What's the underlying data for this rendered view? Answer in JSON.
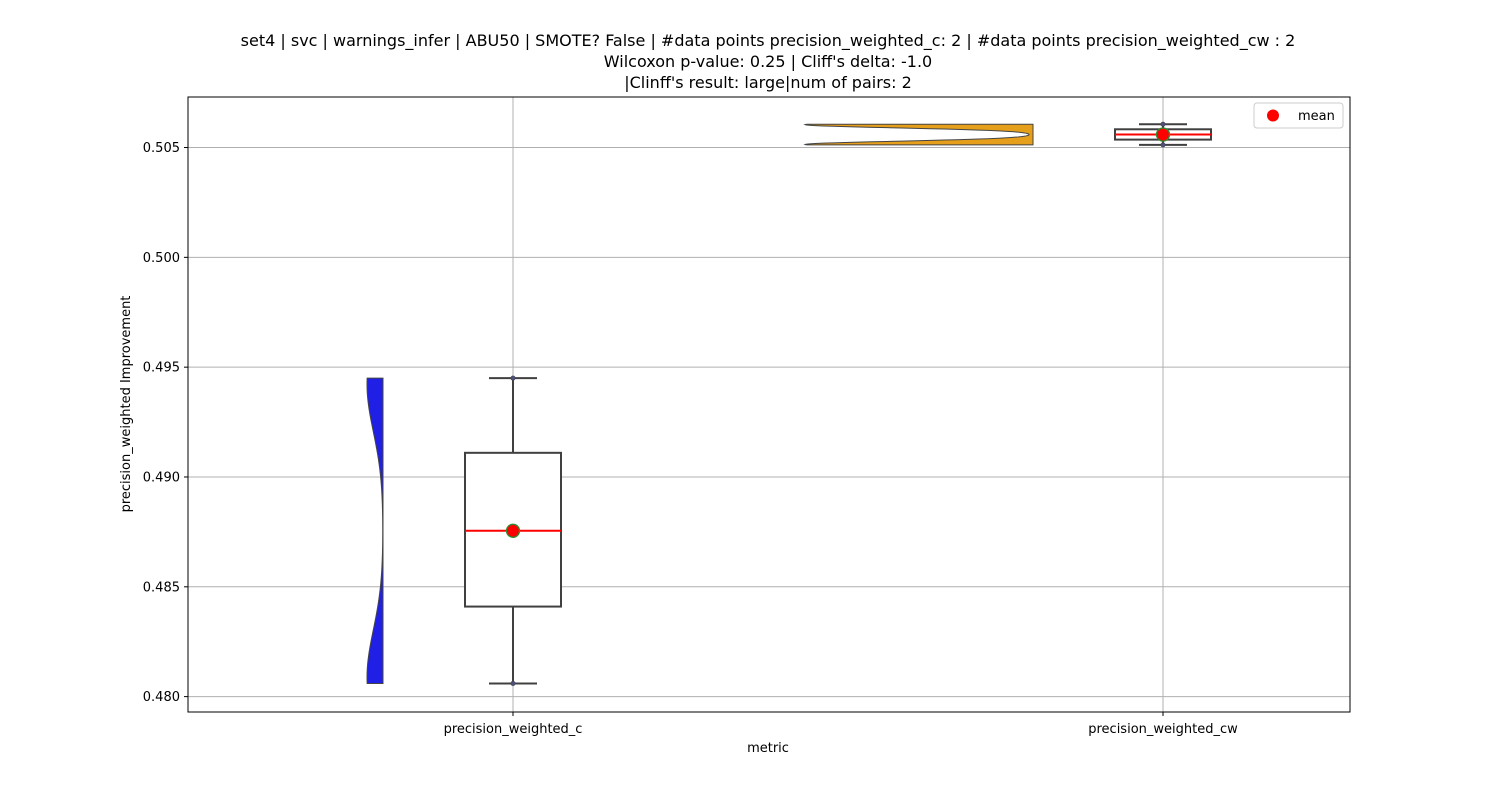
{
  "chart_data": {
    "type": "violin+box",
    "title_lines": [
      "set4 | svc | warnings_infer | ABU50 | SMOTE? False | #data points precision_weighted_c: 2 | #data points precision_weighted_cw : 2",
      "Wilcoxon p-value: 0.25 | Cliff's delta: -1.0",
      "|Clinff's result: large|num of pairs: 2"
    ],
    "xlabel": "metric",
    "ylabel": "precision_weighted Improvement",
    "ylim": [
      0.4793,
      0.5073
    ],
    "yticks": [
      0.48,
      0.485,
      0.49,
      0.495,
      0.5,
      0.505
    ],
    "ytick_labels": [
      "0.480",
      "0.485",
      "0.490",
      "0.495",
      "0.500",
      "0.505"
    ],
    "categories": [
      "precision_weighted_c",
      "precision_weighted_cw"
    ],
    "grid": true,
    "legend": {
      "position": "top-right",
      "entries": [
        {
          "label": "mean",
          "color": "#ff0000"
        }
      ]
    },
    "series": [
      {
        "name": "precision_weighted_c",
        "violin_color": "#1f1fe6",
        "violin_side": "left",
        "violin_range": [
          0.4806,
          0.4945
        ],
        "box": {
          "whisker_low": 0.4806,
          "q1": 0.4841,
          "median": 0.48755,
          "q3": 0.4911,
          "whisker_high": 0.4945
        },
        "points": [
          0.4806,
          0.4945
        ],
        "mean": 0.48755
      },
      {
        "name": "precision_weighted_cw",
        "violin_color": "#e69f1a",
        "violin_side": "left",
        "violin_range": [
          0.50512,
          0.50606
        ],
        "box": {
          "whisker_low": 0.50512,
          "q1": 0.50536,
          "median": 0.50559,
          "q3": 0.50583,
          "whisker_high": 0.50606
        },
        "points": [
          0.50512,
          0.50606
        ],
        "mean": 0.50559
      }
    ]
  }
}
